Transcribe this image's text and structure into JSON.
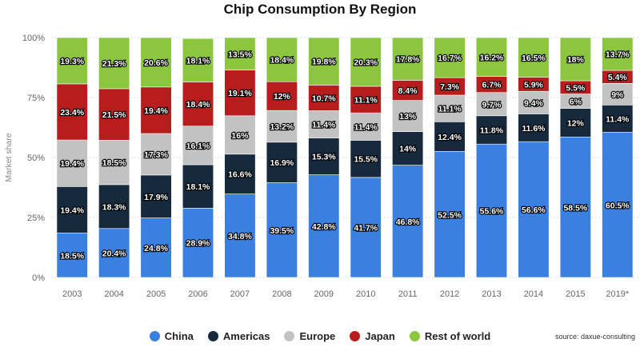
{
  "chart_data": {
    "type": "bar",
    "stacked": true,
    "title": "Chip Consumption By Region",
    "ylabel": "Market share",
    "xlabel": "",
    "ylim": [
      0,
      100
    ],
    "yticks": [
      "0%",
      "25%",
      "50%",
      "75%",
      "100%"
    ],
    "grid": true,
    "legend_position": "bottom",
    "categories": [
      "2003",
      "2004",
      "2005",
      "2006",
      "2007",
      "2008",
      "2009",
      "2010",
      "2011",
      "2012",
      "2013",
      "2014",
      "2015",
      "2019*"
    ],
    "series": [
      {
        "name": "China",
        "color": "#3a80e0",
        "values": [
          18.5,
          20.4,
          24.8,
          28.9,
          34.8,
          39.5,
          42.8,
          41.7,
          46.8,
          52.5,
          55.6,
          56.6,
          58.5,
          60.5
        ],
        "labels": [
          "18.5%",
          "20.4%",
          "24.8%",
          "28.9%",
          "34.8%",
          "39.5%",
          "42.8%",
          "41.7%",
          "46.8%",
          "52.5%",
          "55.6%",
          "56.6%",
          "58.5%",
          "60.5%"
        ]
      },
      {
        "name": "Americas",
        "color": "#172a3d",
        "values": [
          19.4,
          18.3,
          17.9,
          18.1,
          16.6,
          16.9,
          15.3,
          15.5,
          14,
          12.4,
          11.8,
          11.6,
          12,
          11.4
        ],
        "labels": [
          "19.4%",
          "18.3%",
          "17.9%",
          "18.1%",
          "16.6%",
          "16.9%",
          "15.3%",
          "15.5%",
          "14%",
          "12.4%",
          "11.8%",
          "11.6%",
          "12%",
          "11.4%"
        ]
      },
      {
        "name": "Europe",
        "color": "#c2c2c2",
        "values": [
          19.4,
          18.5,
          17.3,
          16.1,
          16,
          13.2,
          11.4,
          11.4,
          13,
          11.1,
          9.7,
          9.4,
          6,
          9
        ],
        "labels": [
          "19.4%",
          "18.5%",
          "17.3%",
          "16.1%",
          "16%",
          "13.2%",
          "11.4%",
          "11.4%",
          "13%",
          "11.1%",
          "9.7%",
          "9.4%",
          "6%",
          "9%"
        ]
      },
      {
        "name": "Japan",
        "color": "#b81d1d",
        "values": [
          23.4,
          21.5,
          19.4,
          18.4,
          19.1,
          12,
          10.7,
          11.1,
          8.4,
          7.3,
          6.7,
          5.9,
          5.5,
          5.4
        ],
        "labels": [
          "23.4%",
          "21.5%",
          "19.4%",
          "18.4%",
          "19.1%",
          "12%",
          "10.7%",
          "11.1%",
          "8.4%",
          "7.3%",
          "6.7%",
          "5.9%",
          "5.5%",
          "5.4%"
        ]
      },
      {
        "name": "Rest of world",
        "color": "#8cc63f",
        "values": [
          19.3,
          21.3,
          20.6,
          18.1,
          13.5,
          18.4,
          19.8,
          20.3,
          17.8,
          16.7,
          16.2,
          16.5,
          18,
          13.7
        ],
        "labels": [
          "19.3%",
          "21.3%",
          "20.6%",
          "18.1%",
          "13.5%",
          "18.4%",
          "19.8%",
          "20.3%",
          "17.8%",
          "16.7%",
          "16.2%",
          "16.5%",
          "18%",
          "13.7%"
        ]
      }
    ],
    "source": "source: daxue-consulting"
  }
}
